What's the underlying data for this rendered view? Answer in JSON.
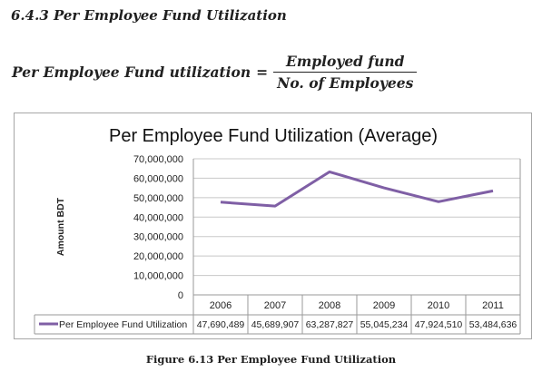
{
  "section": {
    "heading": "6.4.3 Per Employee Fund Utilization"
  },
  "formula": {
    "lhs": "Per Employee Fund utilization",
    "equals": "=",
    "numerator": "Employed fund",
    "denominator": "No. of Employees"
  },
  "chart_data": {
    "type": "line",
    "title": "Per Employee Fund Utilization (Average)",
    "ylabel": "Amount BDT",
    "xlabel": "",
    "categories": [
      "2006",
      "2007",
      "2008",
      "2009",
      "2010",
      "2011"
    ],
    "ylim": [
      0,
      70000000
    ],
    "y_ticks": [
      0,
      10000000,
      20000000,
      30000000,
      40000000,
      50000000,
      60000000,
      70000000
    ],
    "y_tick_labels": [
      "0",
      "10,000,000",
      "20,000,000",
      "30,000,000",
      "40,000,000",
      "50,000,000",
      "60,000,000",
      "70,000,000"
    ],
    "grid": true,
    "legend_placement": "data-table-left",
    "line_color": "#7f5fa5",
    "series": [
      {
        "name": "Per Employee Fund Utilization",
        "values": [
          47690489,
          45689907,
          63287827,
          55045234,
          47924510,
          53484636
        ],
        "value_labels": [
          "47,690,489",
          "45,689,907",
          "63,287,827",
          "55,045,234",
          "47,924,510",
          "53,484,636"
        ]
      }
    ]
  },
  "caption": "Figure 6.13 Per Employee Fund Utilization"
}
